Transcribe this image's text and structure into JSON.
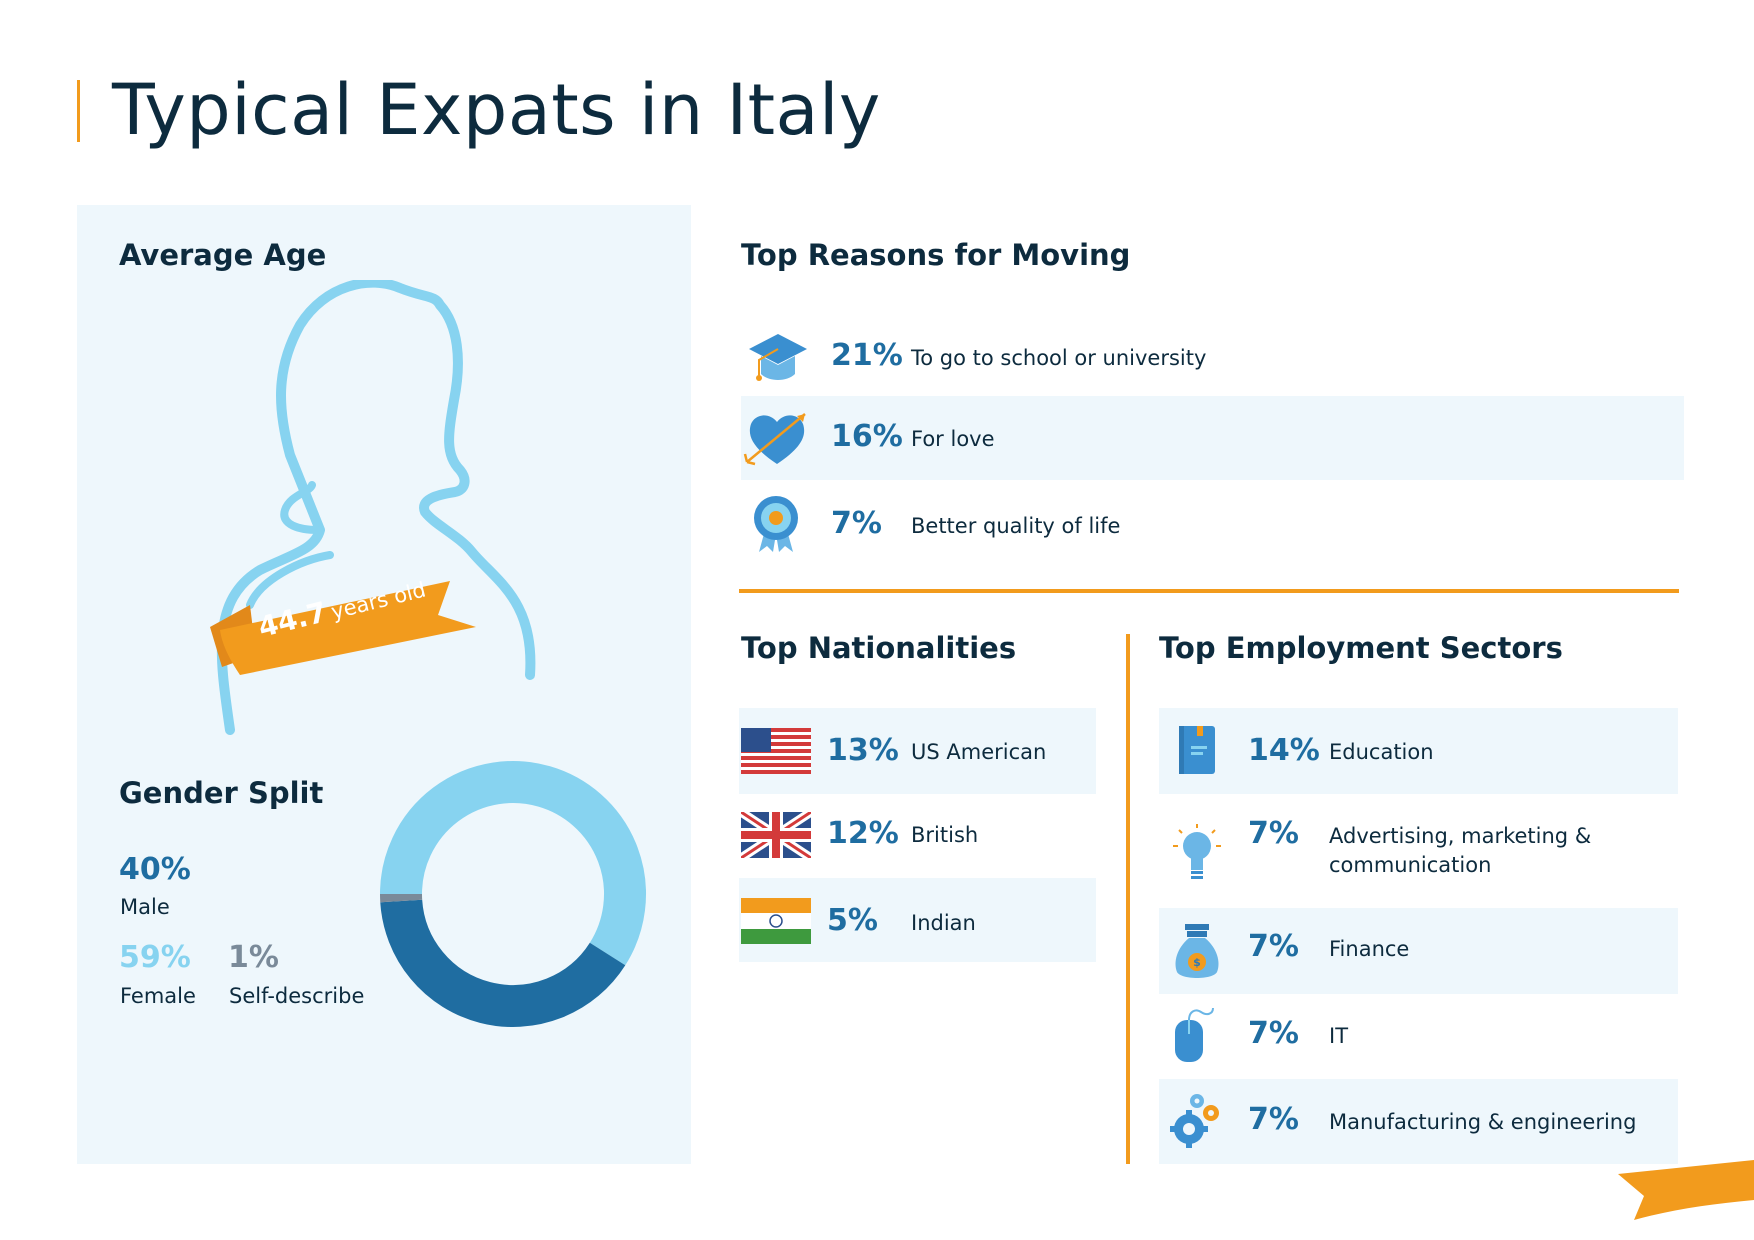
{
  "title": "Typical Expats in Italy",
  "average_age": {
    "heading": "Average Age",
    "value": "44.7",
    "unit": "years old"
  },
  "gender": {
    "heading": "Gender Split",
    "male": {
      "value": "40%",
      "label": "Male"
    },
    "female": {
      "value": "59%",
      "label": "Female"
    },
    "self": {
      "value": "1%",
      "label": "Self-describe"
    },
    "colors": {
      "male": "#1f6da1",
      "female": "#87d3f0",
      "self": "#7a8a99"
    }
  },
  "chart_data": {
    "type": "pie",
    "categories": [
      "Male",
      "Female",
      "Self-describe"
    ],
    "values": [
      40,
      59,
      1
    ]
  },
  "reasons": {
    "heading": "Top Reasons for Moving",
    "items": [
      {
        "pct": "21%",
        "label": "To go to school or university",
        "icon": "graduation-cap-icon"
      },
      {
        "pct": "16%",
        "label": "For love",
        "icon": "heart-arrow-icon"
      },
      {
        "pct": "7%",
        "label": "Better quality of life",
        "icon": "rosette-icon"
      }
    ]
  },
  "nationalities": {
    "heading": "Top Nationalities",
    "items": [
      {
        "pct": "13%",
        "label": "US American",
        "icon": "us-flag-icon"
      },
      {
        "pct": "12%",
        "label": "British",
        "icon": "uk-flag-icon"
      },
      {
        "pct": "5%",
        "label": "Indian",
        "icon": "india-flag-icon"
      }
    ]
  },
  "sectors": {
    "heading": "Top Employment Sectors",
    "items": [
      {
        "pct": "14%",
        "label": "Education",
        "icon": "book-icon"
      },
      {
        "pct": "7%",
        "label": "Advertising, marketing &",
        "label2": "communication",
        "icon": "lightbulb-icon"
      },
      {
        "pct": "7%",
        "label": "Finance",
        "icon": "money-bag-icon"
      },
      {
        "pct": "7%",
        "label": "IT",
        "icon": "computer-mouse-icon"
      },
      {
        "pct": "7%",
        "label": "Manufacturing & engineering",
        "icon": "gears-icon"
      }
    ]
  },
  "colors": {
    "accent": "#f29b1d",
    "dark_blue": "#1f6da1",
    "light_blue": "#87d3f0",
    "panel": "#eef7fc",
    "text": "#0d2b3e"
  }
}
